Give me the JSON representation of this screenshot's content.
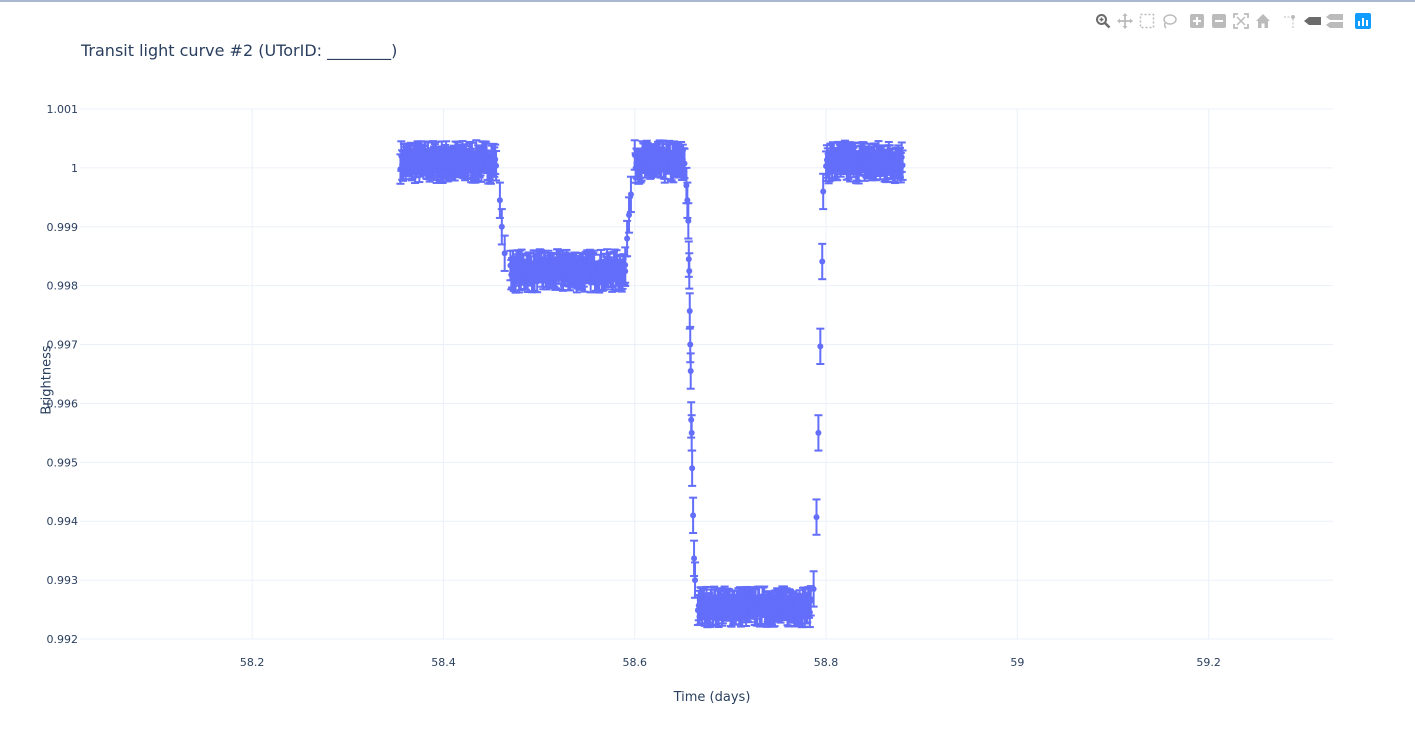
{
  "chart_data": {
    "type": "scatter",
    "title": "Transit light curve #2 (UTorID: ________)",
    "xlabel": "Time (days)",
    "ylabel": "Brightness",
    "xlim": [
      58.02,
      59.33
    ],
    "ylim": [
      0.992,
      1.001
    ],
    "xticks": [
      58.2,
      58.4,
      58.6,
      58.8,
      59,
      59.2
    ],
    "xtick_labels": [
      "58.2",
      "58.4",
      "58.6",
      "58.8",
      "59",
      "59.2"
    ],
    "yticks": [
      0.992,
      0.993,
      0.994,
      0.995,
      0.996,
      0.997,
      0.998,
      0.999,
      1,
      1.001
    ],
    "ytick_labels": [
      "0.992",
      "0.993",
      "0.994",
      "0.995",
      "0.996",
      "0.997",
      "0.998",
      "0.999",
      "1",
      "1.001"
    ],
    "grid": true,
    "marker_color": "#636efa",
    "error_bars": true,
    "baseline_segments": [
      {
        "x_start": 58.355,
        "x_end": 58.455,
        "y_mean": 1.0001,
        "y_spread": 0.00012,
        "error": 0.00025
      },
      {
        "x_start": 58.47,
        "x_end": 58.59,
        "y_mean": 0.99825,
        "y_spread": 0.00012,
        "error": 0.00025
      },
      {
        "x_start": 58.6,
        "x_end": 58.652,
        "y_mean": 1.0001,
        "y_spread": 0.00012,
        "error": 0.00025
      },
      {
        "x_start": 58.666,
        "x_end": 58.784,
        "y_mean": 0.99255,
        "y_spread": 0.0001,
        "error": 0.00025
      },
      {
        "x_start": 58.8,
        "x_end": 58.88,
        "y_mean": 1.0001,
        "y_spread": 0.00012,
        "error": 0.00025
      }
    ],
    "transition_points": [
      {
        "x": 58.459,
        "y": 0.99945,
        "error": 0.0003
      },
      {
        "x": 58.461,
        "y": 0.999,
        "error": 0.0003
      },
      {
        "x": 58.464,
        "y": 0.99855,
        "error": 0.0003
      },
      {
        "x": 58.59,
        "y": 0.99835,
        "error": 0.0003
      },
      {
        "x": 58.592,
        "y": 0.9988,
        "error": 0.0003
      },
      {
        "x": 58.594,
        "y": 0.9992,
        "error": 0.0003
      },
      {
        "x": 58.596,
        "y": 0.99955,
        "error": 0.0003
      },
      {
        "x": 58.654,
        "y": 0.9997,
        "error": 0.0003
      },
      {
        "x": 58.655,
        "y": 0.99945,
        "error": 0.0003
      },
      {
        "x": 58.656,
        "y": 0.9991,
        "error": 0.0003
      },
      {
        "x": 58.6565,
        "y": 0.99845,
        "error": 0.0003
      },
      {
        "x": 58.657,
        "y": 0.99825,
        "error": 0.0003
      },
      {
        "x": 58.6575,
        "y": 0.99757,
        "error": 0.0003
      },
      {
        "x": 58.658,
        "y": 0.997,
        "error": 0.0003
      },
      {
        "x": 58.6585,
        "y": 0.99655,
        "error": 0.0003
      },
      {
        "x": 58.659,
        "y": 0.99572,
        "error": 0.0003
      },
      {
        "x": 58.6595,
        "y": 0.9955,
        "error": 0.0003
      },
      {
        "x": 58.66,
        "y": 0.9949,
        "error": 0.0003
      },
      {
        "x": 58.661,
        "y": 0.9941,
        "error": 0.0003
      },
      {
        "x": 58.662,
        "y": 0.99337,
        "error": 0.0003
      },
      {
        "x": 58.663,
        "y": 0.993,
        "error": 0.0003
      },
      {
        "x": 58.787,
        "y": 0.99285,
        "error": 0.0003
      },
      {
        "x": 58.79,
        "y": 0.99407,
        "error": 0.0003
      },
      {
        "x": 58.792,
        "y": 0.9955,
        "error": 0.0003
      },
      {
        "x": 58.794,
        "y": 0.99697,
        "error": 0.0003
      },
      {
        "x": 58.796,
        "y": 0.99841,
        "error": 0.0003
      },
      {
        "x": 58.797,
        "y": 0.9996,
        "error": 0.0003
      }
    ]
  },
  "toolbar": {
    "buttons": [
      "zoom-icon",
      "pan-icon",
      "box-select-icon",
      "lasso-select-icon",
      "zoom-in-icon",
      "zoom-out-icon",
      "autoscale-icon",
      "reset-axes-icon",
      "spike-lines-icon",
      "hover-closest-icon",
      "hover-compare-icon",
      "plotly-logo-icon"
    ]
  }
}
